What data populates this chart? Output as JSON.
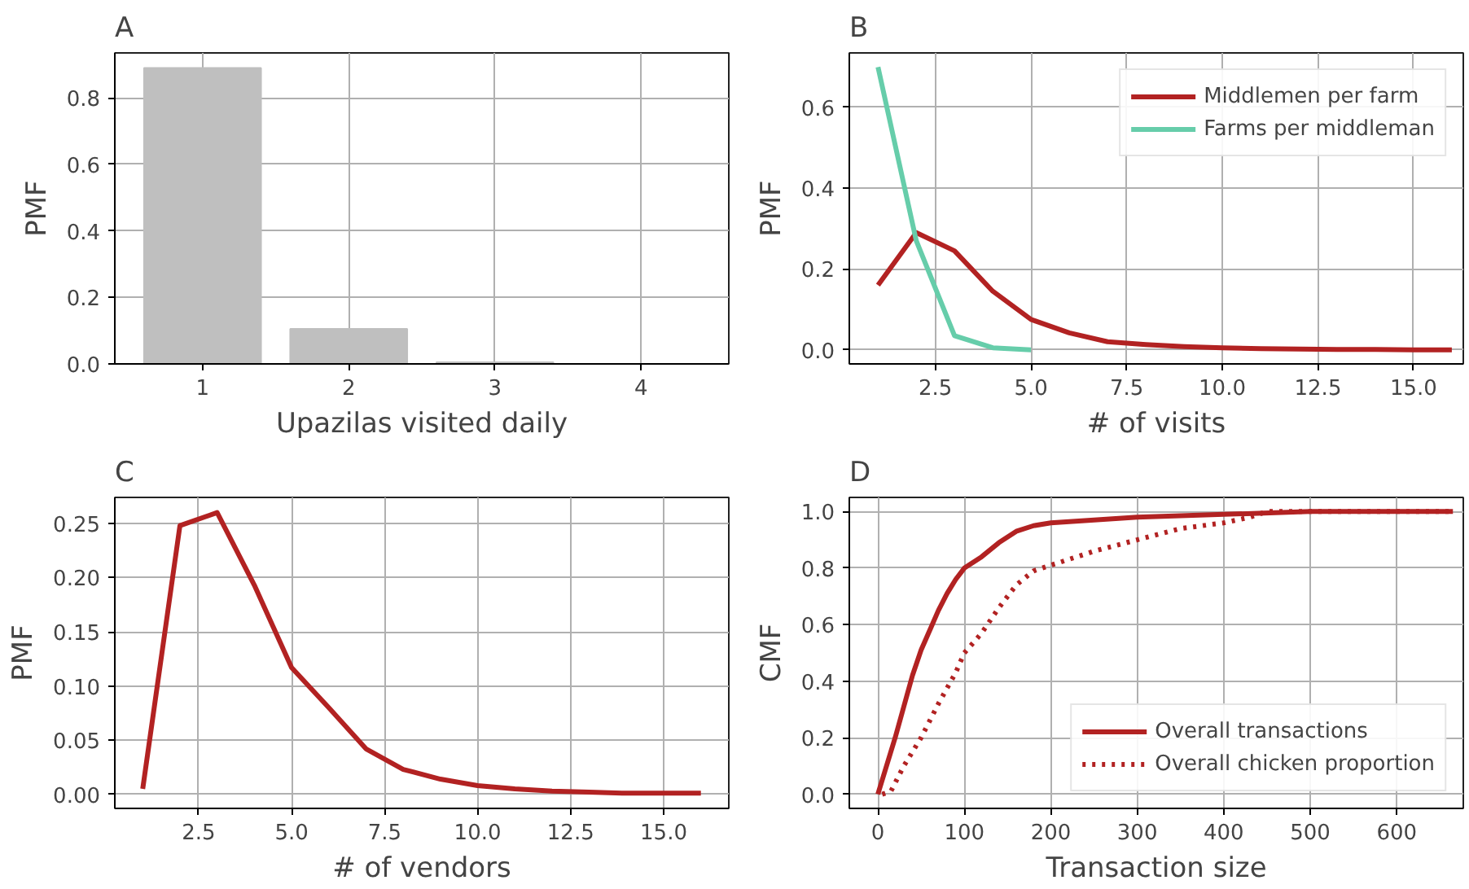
{
  "chart_data": [
    {
      "type": "bar",
      "title": "A",
      "xlabel": "Upazilas visited daily",
      "ylabel": "PMF",
      "x": [
        1,
        2,
        3,
        4
      ],
      "values": [
        0.89,
        0.105,
        0.005,
        0.0
      ],
      "color": "#bfbfbf",
      "xlim": [
        0.4,
        4.6
      ],
      "xticks": [
        1,
        2,
        3,
        4
      ],
      "ylim": [
        0,
        0.935
      ],
      "yticks": [
        {
          "value": 0,
          "label": "0.0"
        },
        0.2,
        0.4,
        0.6,
        0.8
      ],
      "grid": true,
      "legend": false
    },
    {
      "type": "line",
      "title": "B",
      "xlabel": "# of visits",
      "ylabel": "PMF",
      "xlim": [
        0.25,
        16.3
      ],
      "xticks": [
        2.5,
        {
          "value": 5,
          "label": "5.0"
        },
        7.5,
        {
          "value": 10,
          "label": "10.0"
        },
        12.5,
        {
          "value": 15,
          "label": "15.0"
        }
      ],
      "ylim": [
        -0.035,
        0.735
      ],
      "yticks": [
        {
          "value": 0,
          "label": "0.0"
        },
        0.2,
        0.4,
        0.6
      ],
      "grid": true,
      "legend": "top right",
      "series": [
        {
          "name": "Middlemen per farm",
          "color": "#b22222",
          "x": [
            1,
            2,
            3,
            4,
            5,
            6,
            7,
            8,
            9,
            10,
            11,
            12,
            13,
            14,
            15,
            16
          ],
          "values": [
            0.16,
            0.29,
            0.245,
            0.145,
            0.075,
            0.042,
            0.02,
            0.013,
            0.008,
            0.005,
            0.003,
            0.002,
            0.001,
            0.001,
            0.0,
            0.0
          ]
        },
        {
          "name": "Farms per middleman",
          "color": "#66cdaa",
          "x": [
            1,
            2,
            3,
            4,
            5
          ],
          "values": [
            0.7,
            0.27,
            0.035,
            0.005,
            0.0
          ]
        }
      ]
    },
    {
      "type": "line",
      "title": "C",
      "xlabel": "# of vendors",
      "ylabel": "PMF",
      "xlim": [
        0.25,
        16.75
      ],
      "xticks": [
        2.5,
        {
          "value": 5,
          "label": "5.0"
        },
        7.5,
        {
          "value": 10,
          "label": "10.0"
        },
        12.5,
        {
          "value": 15,
          "label": "15.0"
        }
      ],
      "ylim": [
        -0.013,
        0.274
      ],
      "yticks": [
        {
          "value": 0,
          "label": "0.00"
        },
        0.05,
        {
          "value": 0.1,
          "label": "0.10"
        },
        0.15,
        {
          "value": 0.2,
          "label": "0.20"
        },
        0.25
      ],
      "grid": true,
      "legend": false,
      "series": [
        {
          "color": "#b22222",
          "x": [
            1,
            2,
            3,
            4,
            5,
            6,
            7,
            8,
            9,
            10,
            11,
            12,
            13,
            14,
            15,
            16
          ],
          "values": [
            0.005,
            0.248,
            0.26,
            0.193,
            0.117,
            0.08,
            0.042,
            0.023,
            0.014,
            0.008,
            0.005,
            0.003,
            0.002,
            0.001,
            0.001,
            0.001
          ]
        }
      ]
    },
    {
      "type": "line",
      "title": "D",
      "xlabel": "Transaction size",
      "ylabel": "CMF",
      "xlim": [
        -33,
        677
      ],
      "xticks": [
        0,
        100,
        200,
        300,
        400,
        500,
        600
      ],
      "ylim": [
        -0.05,
        1.05
      ],
      "yticks": [
        {
          "value": 0,
          "label": "0.0"
        },
        0.2,
        0.4,
        0.6,
        0.8,
        {
          "value": 1,
          "label": "1.0"
        }
      ],
      "grid": true,
      "legend": "bottom right",
      "series": [
        {
          "name": "Overall transactions",
          "color": "#b22222",
          "line_style": "solid",
          "x": [
            0,
            10,
            20,
            30,
            40,
            50,
            60,
            70,
            80,
            90,
            100,
            120,
            140,
            160,
            180,
            200,
            250,
            300,
            400,
            500,
            665
          ],
          "values": [
            0,
            0.1,
            0.2,
            0.31,
            0.42,
            0.51,
            0.58,
            0.65,
            0.71,
            0.76,
            0.8,
            0.84,
            0.89,
            0.93,
            0.95,
            0.96,
            0.97,
            0.98,
            0.99,
            1.0,
            1.0
          ]
        },
        {
          "name": "Overall chicken proportion",
          "color": "#b22222",
          "line_style": "dotted",
          "x": [
            5,
            15,
            30,
            50,
            70,
            90,
            100,
            120,
            140,
            160,
            180,
            200,
            250,
            300,
            350,
            400,
            430,
            450,
            665
          ],
          "values": [
            0,
            0.01,
            0.1,
            0.2,
            0.32,
            0.43,
            0.5,
            0.57,
            0.66,
            0.74,
            0.79,
            0.81,
            0.86,
            0.9,
            0.94,
            0.96,
            0.98,
            1.0,
            1.0
          ]
        }
      ]
    }
  ]
}
